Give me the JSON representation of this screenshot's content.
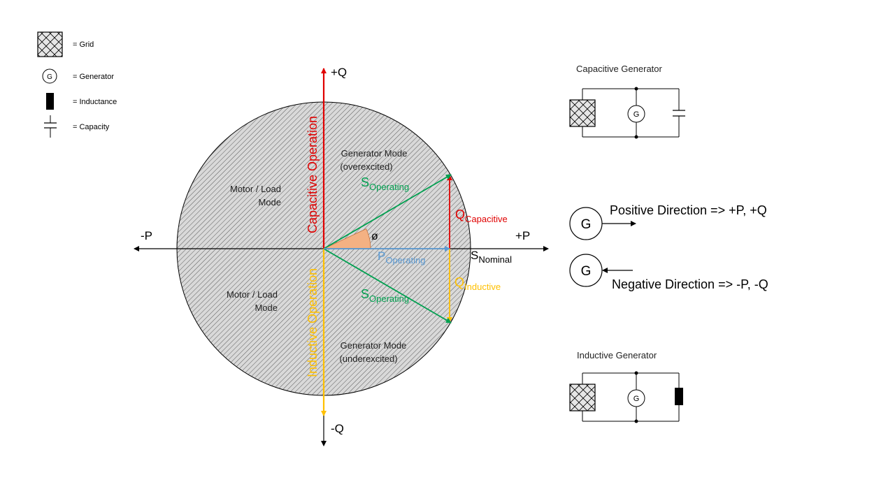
{
  "legend": {
    "grid": "= Grid",
    "generator_symbol": "G",
    "generator": "= Generator",
    "inductance": "= Inductance",
    "capacity": "= Capacity"
  },
  "axes": {
    "plus_q": "+Q",
    "minus_q": "-Q",
    "plus_p": "+P",
    "minus_p": "-P"
  },
  "regions": {
    "gen_over_1": "Generator Mode",
    "gen_over_2": "(overexcited)",
    "gen_under_1": "Generator Mode",
    "gen_under_2": "(underexcited)",
    "motor_top_1": "Motor / Load",
    "motor_top_2": "Mode",
    "motor_bottom_1": "Motor / Load",
    "motor_bottom_2": "Mode"
  },
  "vertical_labels": {
    "capacitive": "Capacitive Operation",
    "inductive": "Inductive Operation"
  },
  "vectors": {
    "s_main": "S",
    "s_sub": "Operating",
    "p_main": "P",
    "p_sub": "Operating",
    "q_main": "Q",
    "q_cap_sub": "Capacitive",
    "q_ind_sub": "Inductive",
    "snom_main": "S",
    "snom_sub": "Nominal",
    "phi": "ø"
  },
  "circuits": {
    "capacitive_title": "Capacitive Generator",
    "inductive_title": "Inductive Generator",
    "generator_symbol": "G"
  },
  "directions": {
    "generator_symbol": "G",
    "positive": "Positive Direction => +P, +Q",
    "negative": "Negative Direction => -P, -Q"
  },
  "colors": {
    "capacitive": "#e00000",
    "inductive": "#ffc000",
    "operating": "#00a050",
    "active": "#5b9bd5",
    "angle_fill": "#f4b183",
    "hatch": "#555555",
    "circle_fill": "#d9d9d9"
  }
}
